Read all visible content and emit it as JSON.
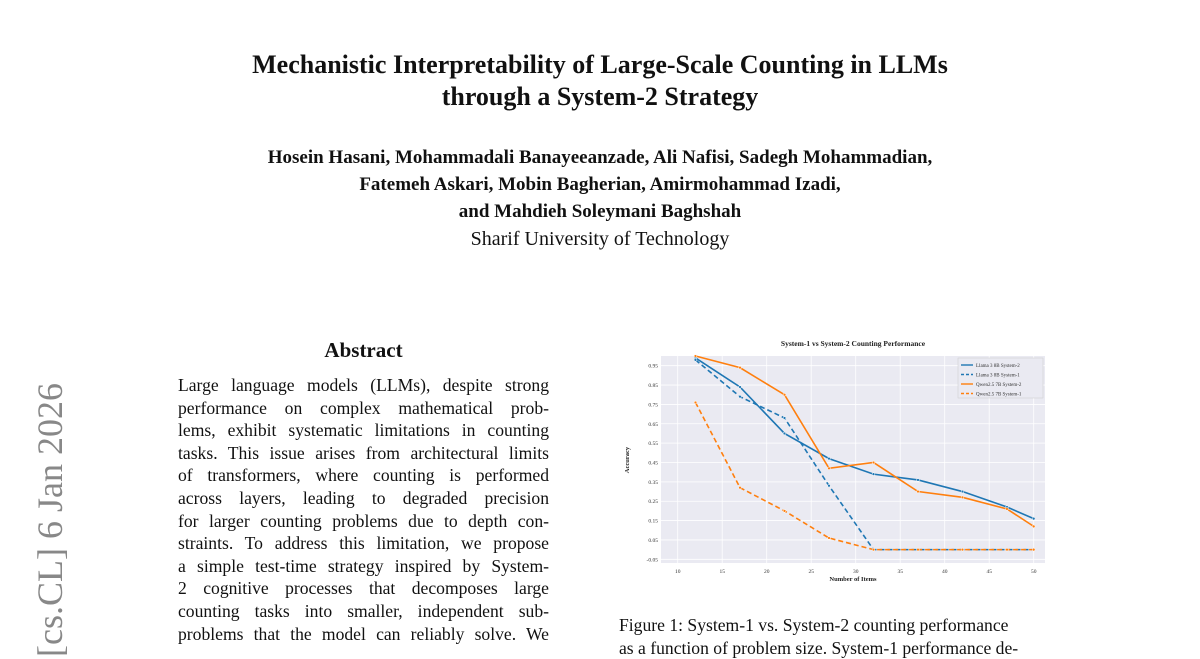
{
  "title": [
    "Mechanistic Interpretability of Large-Scale Counting in LLMs",
    "through a System-2 Strategy"
  ],
  "authors": [
    "Hosein Hasani, Mohammadali Banayeeanzade, Ali Nafisi, Sadegh Mohammadian,",
    "Fatemeh Askari, Mobin Bagherian, Amirmohammad Izadi,",
    "and Mahdieh Soleymani Baghshah"
  ],
  "affiliation": "Sharif University of Technology",
  "arxiv_stamp": "[cs.CL]  6 Jan 2026",
  "abstract": {
    "heading": "Abstract",
    "lines": [
      "Large language models (LLMs), despite strong",
      "performance on complex mathematical prob-",
      "lems, exhibit systematic limitations in counting",
      "tasks. This issue arises from architectural limits",
      "of transformers, where counting is performed",
      "across layers, leading to degraded precision",
      "for larger counting problems due to depth con-",
      "straints. To address this limitation, we propose",
      "a simple test-time strategy inspired by System-",
      "2 cognitive processes that decomposes large",
      "counting tasks into smaller, independent sub-",
      "problems that the model can reliably solve. We"
    ]
  },
  "caption": [
    "Figure 1: System-1 vs. System-2 counting performance",
    "as a function of problem size. System-1 performance de-"
  ],
  "chart_data": {
    "type": "line",
    "title": "System-1 vs System-2 Counting Performance",
    "xlabel": "Number of Items",
    "ylabel": "Accuracy",
    "x": [
      12,
      17,
      22,
      27,
      32,
      37,
      42,
      47,
      50
    ],
    "xticks": [
      "10",
      "15",
      "20",
      "25",
      "30",
      "35",
      "40",
      "45",
      "50"
    ],
    "yticks": [
      "0.95",
      "0.85",
      "0.75",
      "0.65",
      "0.55",
      "0.45",
      "0.35",
      "0.25",
      "0.15",
      "0.05",
      "-0.05"
    ],
    "xlim": [
      8,
      51
    ],
    "ylim": [
      -0.05,
      1.0
    ],
    "grid": true,
    "legend_position": "top-right",
    "series": [
      {
        "name": "Llama 3 8B System-2",
        "color": "#1f77b4",
        "dash": "solid",
        "values": [
          0.99,
          0.84,
          0.6,
          0.47,
          0.39,
          0.36,
          0.3,
          0.22,
          0.16
        ]
      },
      {
        "name": "Llama 3 8B System-1",
        "color": "#1f77b4",
        "dash": "dashed",
        "values": [
          0.98,
          0.79,
          0.68,
          0.33,
          0.0,
          0.0,
          0.0,
          0.0,
          0.0
        ]
      },
      {
        "name": "Qwen2.5 7B System-2",
        "color": "#ff7f0e",
        "dash": "solid",
        "values": [
          1.0,
          0.94,
          0.8,
          0.42,
          0.45,
          0.3,
          0.27,
          0.21,
          0.12
        ]
      },
      {
        "name": "Qwen2.5 7B System-1",
        "color": "#ff7f0e",
        "dash": "dashed",
        "values": [
          0.76,
          0.32,
          0.2,
          0.06,
          0.0,
          0.0,
          0.0,
          0.0,
          0.0
        ]
      }
    ]
  }
}
